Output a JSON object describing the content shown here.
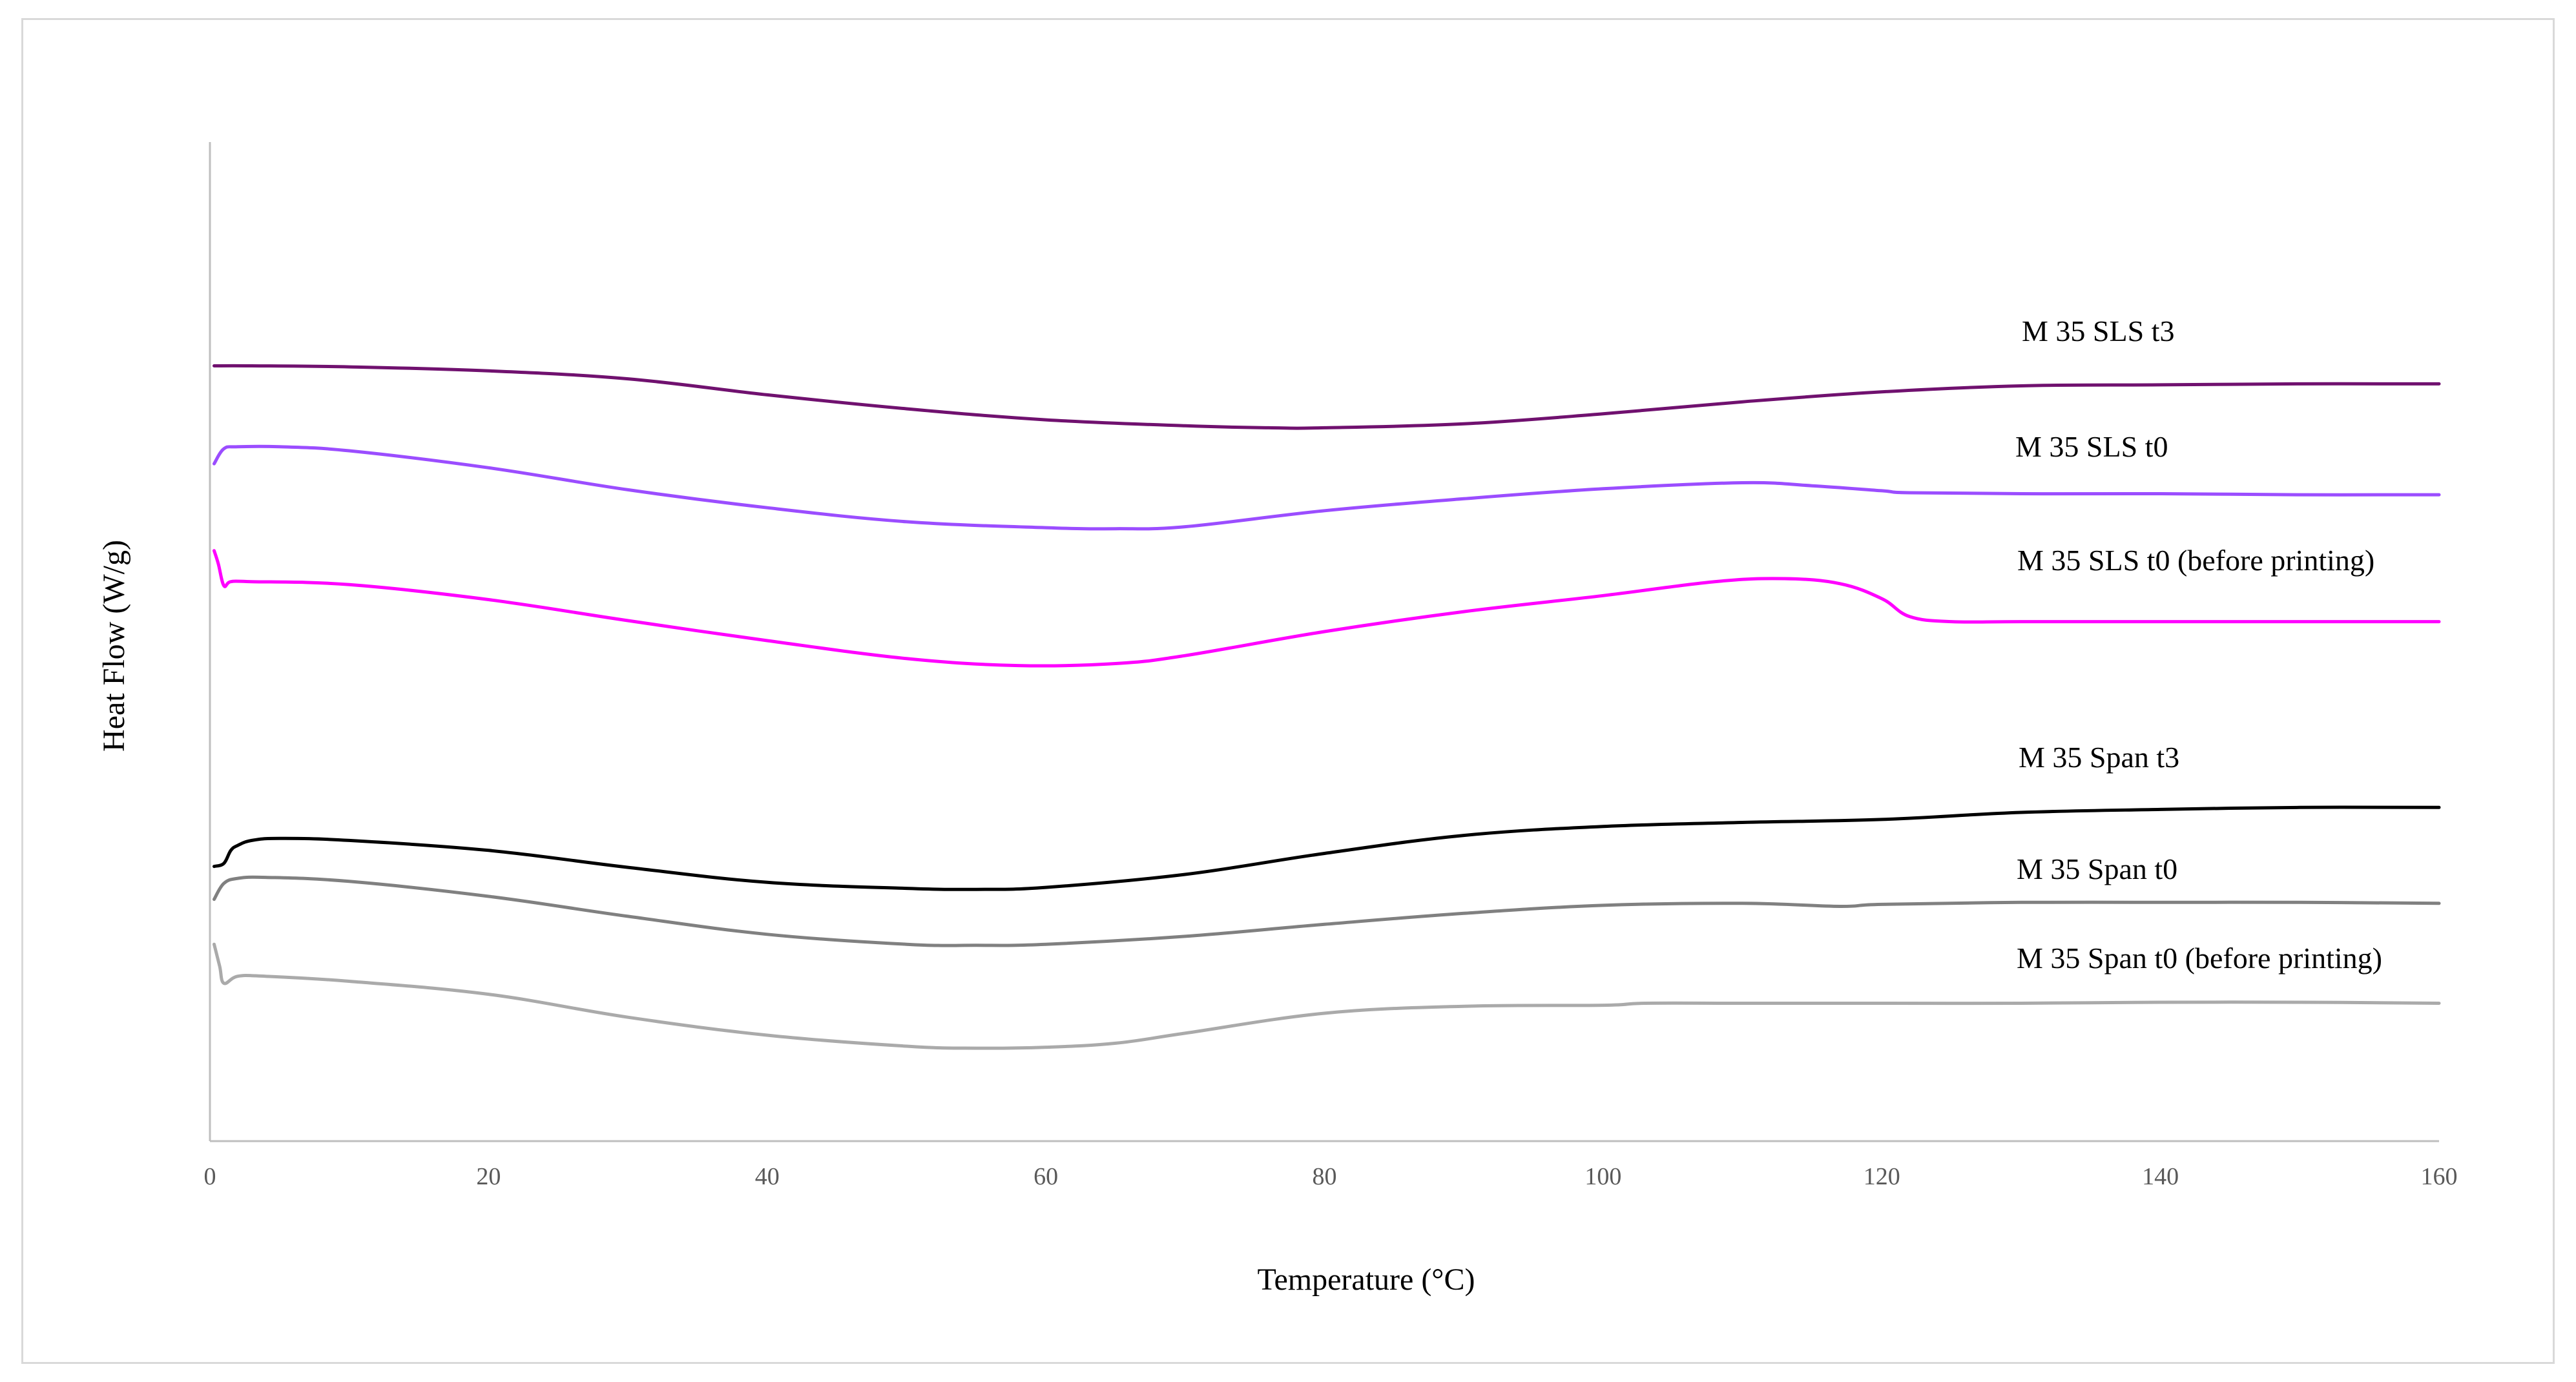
{
  "chart_data": {
    "type": "line",
    "title": "",
    "xlabel": "Temperature (°C)",
    "ylabel": "Heat Flow (W/g)",
    "xlim": [
      0,
      160
    ],
    "ylim": [
      0,
      100
    ],
    "xticks": [
      0,
      20,
      40,
      60,
      80,
      100,
      120,
      140,
      160
    ],
    "ytick_labels_shown": false,
    "grid": false,
    "legend": "inline labels at right",
    "series": [
      {
        "name": "M 35 SLS t3",
        "color": "#70116f",
        "x": [
          0.3,
          3,
          10,
          20,
          30,
          40,
          50,
          60,
          70,
          76,
          80,
          90,
          100,
          110,
          120,
          130,
          140,
          150,
          160
        ],
        "y": [
          77.6,
          77.6,
          77.5,
          77.1,
          76.3,
          74.7,
          73.3,
          72.2,
          71.6,
          71.4,
          71.4,
          71.8,
          72.8,
          74.0,
          75.0,
          75.6,
          75.7,
          75.8,
          75.8
        ]
      },
      {
        "name": "M 35 SLS t0",
        "color": "#9b4dff",
        "x": [
          0.3,
          1,
          2,
          5,
          10,
          20,
          30,
          40,
          50,
          60,
          65,
          70,
          80,
          90,
          100,
          110,
          115,
          120,
          122,
          130,
          140,
          150,
          160
        ],
        "y": [
          67.8,
          69.3,
          69.5,
          69.5,
          69.1,
          67.4,
          65.2,
          63.4,
          62.0,
          61.4,
          61.3,
          61.5,
          63.1,
          64.3,
          65.3,
          65.9,
          65.6,
          65.1,
          64.9,
          64.8,
          64.8,
          64.7,
          64.7
        ]
      },
      {
        "name": "M 35 SLS t0 (before printing)",
        "color": "#ff00ff",
        "x": [
          0.3,
          0.6,
          1,
          1.5,
          3,
          10,
          20,
          30,
          40,
          50,
          58,
          65,
          70,
          80,
          90,
          100,
          108,
          113,
          117,
          120,
          122,
          125,
          130,
          140,
          150,
          160
        ],
        "y": [
          59.1,
          57.8,
          55.6,
          56.0,
          56.0,
          55.7,
          54.2,
          52.1,
          50.1,
          48.3,
          47.6,
          47.8,
          48.6,
          51.0,
          53.0,
          54.6,
          56.0,
          56.3,
          55.8,
          54.3,
          52.5,
          52.0,
          52.0,
          52.0,
          52.0,
          52.0
        ]
      },
      {
        "name": "M 35 Span t3",
        "color": "#000000",
        "x": [
          0.3,
          1,
          1.5,
          2,
          3,
          5,
          10,
          20,
          30,
          40,
          50,
          55,
          60,
          70,
          80,
          90,
          100,
          110,
          120,
          130,
          140,
          150,
          160
        ],
        "y": [
          27.5,
          27.8,
          29.1,
          29.6,
          30.1,
          30.3,
          30.1,
          29.1,
          27.4,
          25.9,
          25.3,
          25.2,
          25.4,
          26.7,
          28.8,
          30.6,
          31.5,
          31.9,
          32.2,
          32.9,
          33.2,
          33.4,
          33.4
        ]
      },
      {
        "name": "M 35 Span t0",
        "color": "#808080",
        "x": [
          0.3,
          1,
          2,
          4,
          10,
          20,
          30,
          40,
          50,
          55,
          60,
          70,
          80,
          90,
          100,
          110,
          117,
          120,
          130,
          140,
          150,
          160
        ],
        "y": [
          24.2,
          25.8,
          26.3,
          26.4,
          26.0,
          24.5,
          22.5,
          20.7,
          19.7,
          19.6,
          19.7,
          20.5,
          21.7,
          22.8,
          23.6,
          23.8,
          23.5,
          23.7,
          23.9,
          23.9,
          23.9,
          23.8
        ]
      },
      {
        "name": "M 35 Span t0 (before printing)",
        "color": "#aaaaaa",
        "x": [
          0.3,
          0.7,
          1,
          2,
          4,
          10,
          20,
          30,
          40,
          50,
          55,
          60,
          65,
          70,
          80,
          90,
          100,
          103,
          110,
          120,
          130,
          140,
          150,
          160
        ],
        "y": [
          19.7,
          17.5,
          15.8,
          16.5,
          16.5,
          16.0,
          14.7,
          12.4,
          10.6,
          9.5,
          9.3,
          9.4,
          9.8,
          10.8,
          12.8,
          13.5,
          13.6,
          13.8,
          13.8,
          13.8,
          13.8,
          13.9,
          13.9,
          13.8
        ]
      }
    ]
  }
}
